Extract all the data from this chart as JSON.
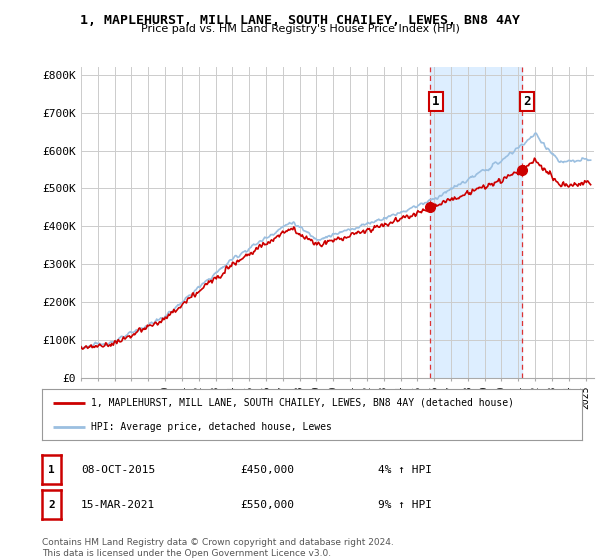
{
  "title": "1, MAPLEHURST, MILL LANE, SOUTH CHAILEY, LEWES, BN8 4AY",
  "subtitle": "Price paid vs. HM Land Registry's House Price Index (HPI)",
  "ylabel_ticks": [
    "£0",
    "£100K",
    "£200K",
    "£300K",
    "£400K",
    "£500K",
    "£600K",
    "£700K",
    "£800K"
  ],
  "ytick_values": [
    0,
    100000,
    200000,
    300000,
    400000,
    500000,
    600000,
    700000,
    800000
  ],
  "ylim": [
    0,
    820000
  ],
  "xlim_start": 1995.0,
  "xlim_end": 2025.5,
  "hpi_color": "#9bbfe0",
  "price_color": "#cc0000",
  "background_color": "#ffffff",
  "plot_bg_color": "#ffffff",
  "grid_color": "#cccccc",
  "sale1_x": 2015.77,
  "sale1_y": 450000,
  "sale2_x": 2021.21,
  "sale2_y": 550000,
  "annotation1_label": "1",
  "annotation2_label": "2",
  "legend_line1": "1, MAPLEHURST, MILL LANE, SOUTH CHAILEY, LEWES, BN8 4AY (detached house)",
  "legend_line2": "HPI: Average price, detached house, Lewes",
  "table_row1": [
    "1",
    "08-OCT-2015",
    "£450,000",
    "4% ↑ HPI"
  ],
  "table_row2": [
    "2",
    "15-MAR-2021",
    "£550,000",
    "9% ↑ HPI"
  ],
  "footnote": "Contains HM Land Registry data © Crown copyright and database right 2024.\nThis data is licensed under the Open Government Licence v3.0.",
  "highlight_x_start": 2015.77,
  "highlight_x_end": 2021.21,
  "highlight_color": "#ddeeff",
  "dashed_line1_x": 2015.77,
  "dashed_line2_x": 2021.21,
  "annotation_box_color": "#cc0000",
  "sale_marker_color": "#cc0000"
}
